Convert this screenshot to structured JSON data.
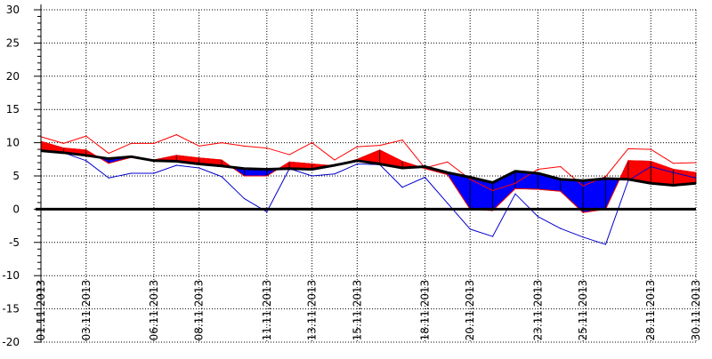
{
  "chart_data": {
    "type": "line",
    "title": "",
    "xlabel": "",
    "ylabel": "",
    "ylim": [
      -20,
      30
    ],
    "y_ticks": [
      30,
      25,
      20,
      15,
      10,
      5,
      0,
      -5,
      -10,
      -15,
      -20
    ],
    "x_domain": [
      "2013-11-01",
      "2013-11-30"
    ],
    "x_tick_labels": [
      {
        "label": "01.11.2013",
        "day": 1
      },
      {
        "label": "03.11.2013",
        "day": 3
      },
      {
        "label": "06.11.2013",
        "day": 6
      },
      {
        "label": "08.11.2013",
        "day": 8
      },
      {
        "label": "11.11.2013",
        "day": 11
      },
      {
        "label": "13.11.2013",
        "day": 13
      },
      {
        "label": "15.11.2013",
        "day": 15
      },
      {
        "label": "18.11.2013",
        "day": 18
      },
      {
        "label": "20.11.2013",
        "day": 20
      },
      {
        "label": "23.11.2013",
        "day": 23
      },
      {
        "label": "25.11.2013",
        "day": 25
      },
      {
        "label": "28.11.2013",
        "day": 28
      },
      {
        "label": "30.11.2013",
        "day": 30
      }
    ],
    "grid": true,
    "x_days": [
      1,
      2,
      3,
      4,
      5,
      6,
      7,
      8,
      9,
      10,
      11,
      12,
      13,
      14,
      15,
      16,
      17,
      18,
      19,
      20,
      21,
      22,
      23,
      24,
      25,
      26,
      27,
      28,
      29,
      30
    ],
    "series": [
      {
        "values": [
          10.2,
          9.2,
          8.9,
          6.9,
          7.8,
          7.4,
          8.1,
          7.7,
          7.4,
          5.0,
          5.0,
          7.1,
          6.8,
          6.5,
          7.5,
          8.9,
          7.2,
          6.1,
          5.2,
          0.0,
          -0.2,
          3.1,
          3.0,
          2.7,
          -0.5,
          0.0,
          7.3,
          7.2,
          6.0,
          5.5
        ],
        "color": "#ff0000"
      },
      {
        "values": [
          10.9,
          9.9,
          11.0,
          8.4,
          9.9,
          9.9,
          11.2,
          9.5,
          10.0,
          9.5,
          9.2,
          8.2,
          10.0,
          7.4,
          9.4,
          9.6,
          10.4,
          6.2,
          7.1,
          4.5,
          2.8,
          3.9,
          6.0,
          6.4,
          3.5,
          4.9,
          9.1,
          9.0,
          6.9,
          7.0
        ],
        "color": "#ff0000"
      },
      {
        "values": [
          8.7,
          8.5,
          7.3,
          4.7,
          5.4,
          5.4,
          6.6,
          6.2,
          4.9,
          1.6,
          -0.4,
          6.1,
          5.0,
          5.3,
          6.8,
          6.7,
          3.3,
          4.8,
          0.9,
          -3.0,
          -4.1,
          2.3,
          -1.1,
          -2.9,
          -4.2,
          -5.3,
          4.3,
          6.4,
          5.5,
          4.7
        ],
        "color": "#0000cc"
      },
      {
        "values": [
          8.8,
          8.5,
          8.1,
          7.6,
          7.9,
          7.3,
          7.2,
          6.8,
          6.5,
          6.1,
          6.0,
          6.1,
          6.0,
          6.6,
          7.3,
          6.8,
          6.2,
          6.4,
          5.5,
          4.8,
          4.0,
          5.7,
          5.4,
          4.5,
          4.3,
          4.6,
          4.5,
          3.9,
          3.6,
          3.9
        ],
        "color": "#000000"
      }
    ],
    "zero_line": {
      "value": 0,
      "color": "#000000"
    }
  }
}
